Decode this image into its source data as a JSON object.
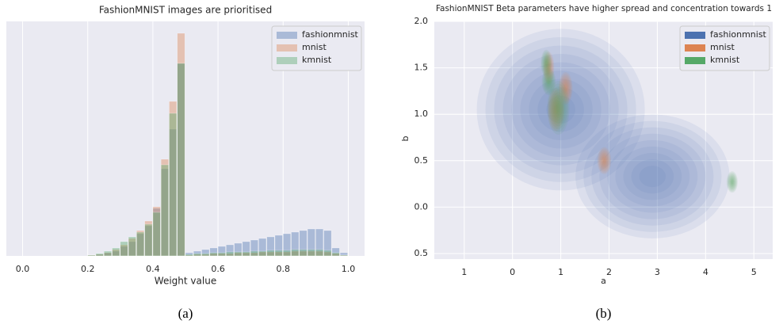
{
  "chart_data": [
    {
      "type": "histogram",
      "title": "FashionMNIST images are prioritised",
      "x_label": "Weight value",
      "caption": "(a)",
      "xlim": [
        -0.05,
        1.05
      ],
      "xticks": [
        {
          "value": 0,
          "label": "0.0"
        },
        0.2,
        0.4,
        0.6,
        0.8,
        {
          "value": 1,
          "label": "1.0"
        }
      ],
      "ylim": [
        0,
        296
      ],
      "grid": true,
      "legend": "upper right",
      "bins": [
        0.2,
        0.225,
        0.25,
        0.275,
        0.3,
        0.325,
        0.35,
        0.375,
        0.4,
        0.425,
        0.45,
        0.475,
        0.5,
        0.525,
        0.55,
        0.575,
        0.6,
        0.625,
        0.65,
        0.675,
        0.7,
        0.725,
        0.75,
        0.775,
        0.8,
        0.825,
        0.85,
        0.875,
        0.9,
        0.925,
        0.95,
        0.975,
        1.0
      ],
      "series": [
        {
          "name": "fashionmnist",
          "color": "#4c72b0",
          "values": [
            1,
            2,
            4,
            6,
            12,
            18,
            28,
            38,
            60,
            110,
            160,
            243,
            4,
            6,
            8,
            10,
            12,
            14,
            16,
            18,
            20,
            22,
            24,
            26,
            28,
            30,
            32,
            34,
            34,
            32,
            10,
            4
          ]
        },
        {
          "name": "mnist",
          "color": "#dd8452",
          "values": [
            1,
            2,
            4,
            8,
            14,
            22,
            32,
            44,
            62,
            122,
            195,
            281,
            1,
            2,
            2,
            3,
            3,
            3,
            4,
            4,
            4,
            5,
            5,
            5,
            5,
            6,
            6,
            6,
            6,
            5,
            3,
            1
          ]
        },
        {
          "name": "kmnist",
          "color": "#55a868",
          "values": [
            1,
            3,
            6,
            10,
            18,
            24,
            30,
            40,
            55,
            115,
            180,
            243,
            2,
            3,
            3,
            4,
            4,
            5,
            5,
            5,
            6,
            6,
            7,
            7,
            7,
            8,
            8,
            8,
            8,
            7,
            4,
            1
          ]
        }
      ]
    },
    {
      "type": "kde",
      "title": "FashionMNIST Beta parameters have higher spread and concentration towards 1",
      "x_label": "a",
      "y_label": "b",
      "caption": "(b)",
      "xlim": [
        -1.62,
        5.39
      ],
      "xticks": [
        {
          "value": -1,
          "label": "1"
        },
        0,
        1,
        2,
        3,
        4,
        5
      ],
      "ylim": [
        -0.56,
        2.0
      ],
      "yticks": [
        {
          "value": 2,
          "label": "2.0"
        },
        1.5,
        {
          "value": 1,
          "label": "1.0"
        },
        0.5,
        {
          "value": 0,
          "label": "0.0"
        },
        {
          "value": -0.5,
          "label": "0.5"
        }
      ],
      "grid": true,
      "legend": "upper right",
      "series": [
        {
          "name": "fashionmnist",
          "color": "#4c72b0",
          "a_centers": [
            1.0,
            2.9
          ],
          "b_centers": [
            1.05,
            0.33
          ],
          "a_spread": [
            0.6,
            0.55
          ],
          "b_spread": [
            0.3,
            0.23
          ]
        },
        {
          "name": "mnist",
          "color": "#dd8452",
          "a_centers": [
            0.75,
            1.1,
            1.9,
            0.9
          ],
          "b_centers": [
            1.5,
            1.28,
            0.5,
            1.05
          ],
          "a_spread": [
            0.04,
            0.05,
            0.05,
            0.06
          ],
          "b_spread": [
            0.06,
            0.06,
            0.05,
            0.08
          ]
        },
        {
          "name": "kmnist",
          "color": "#55a868",
          "a_centers": [
            0.7,
            0.75,
            0.95,
            4.55
          ],
          "b_centers": [
            1.55,
            1.35,
            1.07,
            0.27
          ],
          "a_spread": [
            0.04,
            0.05,
            0.08,
            0.04
          ],
          "b_spread": [
            0.05,
            0.05,
            0.1,
            0.04
          ]
        }
      ]
    }
  ]
}
